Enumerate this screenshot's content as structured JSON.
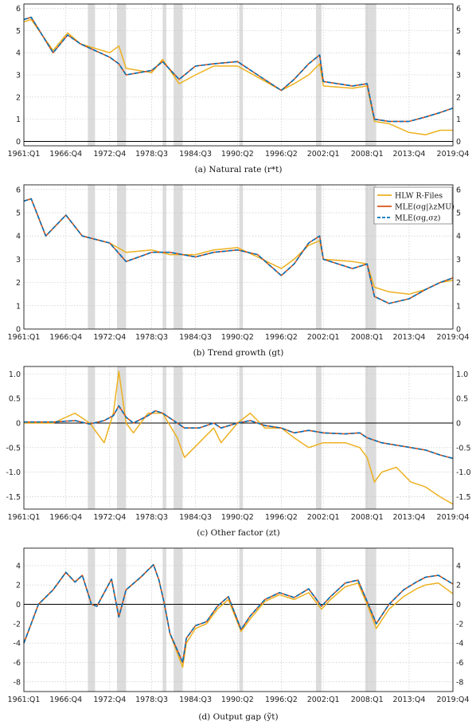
{
  "colors": {
    "hlw": "#EDB120",
    "mle_lambda": "#D95319",
    "mle_sigma": "#0072BD",
    "recession": "#dcdcdc",
    "grid": "#bfbfbf"
  },
  "x_ticks": [
    "1961:Q1",
    "1966:Q4",
    "1972:Q4",
    "1978:Q3",
    "1984:Q3",
    "1990:Q2",
    "1996:Q2",
    "2002:Q1",
    "2008:Q1",
    "2013:Q4",
    "2019:Q4"
  ],
  "recessions": [
    [
      "1969:Q4",
      "1970:Q4"
    ],
    [
      "1973:Q4",
      "1975:Q1"
    ],
    [
      "1980:Q1",
      "1980:Q3"
    ],
    [
      "1981:Q3",
      "1982:Q4"
    ],
    [
      "1990:Q3",
      "1991:Q1"
    ],
    [
      "2001:Q1",
      "2001:Q4"
    ],
    [
      "2007:Q4",
      "2009:Q2"
    ]
  ],
  "legend": [
    {
      "label": "HLW R-Files",
      "color": "#EDB120",
      "dash": "solid"
    },
    {
      "label": "MLE(σg|λzMU)",
      "color": "#D95319",
      "dash": "solid"
    },
    {
      "label": "MLE(σg,σz)",
      "color": "#0072BD",
      "dash": "dashed"
    }
  ],
  "chart_data": [
    {
      "type": "line",
      "caption": "(a) Natural rate (r*t)",
      "ylim": [
        -0.2,
        6.2
      ],
      "yticks": [
        0,
        1,
        2,
        3,
        4,
        5,
        6
      ],
      "x": [
        "1961:Q1",
        "1962:Q1",
        "1965:Q1",
        "1967:Q1",
        "1968:Q4",
        "1972:Q4",
        "1974:Q1",
        "1975:Q1",
        "1978:Q3",
        "1980:Q1",
        "1982:Q2",
        "1984:Q3",
        "1987:Q1",
        "1990:Q2",
        "1993:Q1",
        "1996:Q2",
        "1998:Q1",
        "2000:Q1",
        "2001:Q3",
        "2002:Q1",
        "2006:Q1",
        "2008:Q1",
        "2009:Q1",
        "2011:Q1",
        "2013:Q4",
        "2016:Q1",
        "2018:Q1",
        "2019:Q4"
      ],
      "series": [
        {
          "name": "HLW R-Files",
          "values": [
            5.4,
            5.5,
            4.1,
            4.9,
            4.4,
            4.0,
            4.3,
            3.3,
            3.1,
            3.7,
            2.6,
            3.0,
            3.4,
            3.4,
            2.9,
            2.3,
            2.6,
            3.0,
            3.5,
            2.5,
            2.4,
            2.5,
            0.9,
            0.8,
            0.4,
            0.3,
            0.5,
            0.5
          ]
        },
        {
          "name": "MLE(σg|λzMU)",
          "values": [
            5.5,
            5.6,
            4.0,
            4.8,
            4.4,
            3.8,
            3.5,
            3.0,
            3.2,
            3.6,
            2.8,
            3.4,
            3.5,
            3.6,
            3.0,
            2.3,
            2.8,
            3.5,
            3.9,
            2.7,
            2.5,
            2.6,
            1.0,
            0.9,
            0.9,
            1.1,
            1.3,
            1.5
          ]
        },
        {
          "name": "MLE(σg,σz)",
          "values": [
            5.5,
            5.6,
            4.0,
            4.8,
            4.4,
            3.8,
            3.5,
            3.0,
            3.2,
            3.6,
            2.8,
            3.4,
            3.5,
            3.6,
            3.0,
            2.3,
            2.8,
            3.5,
            3.9,
            2.7,
            2.5,
            2.6,
            1.0,
            0.9,
            0.9,
            1.1,
            1.3,
            1.5
          ]
        }
      ]
    },
    {
      "type": "line",
      "caption": "(b) Trend growth (gt)",
      "ylim": [
        0,
        6.2
      ],
      "yticks": [
        0,
        1,
        2,
        3,
        4,
        5,
        6
      ],
      "x": [
        "1961:Q1",
        "1962:Q1",
        "1964:Q1",
        "1966:Q4",
        "1969:Q1",
        "1972:Q4",
        "1975:Q1",
        "1978:Q3",
        "1981:Q1",
        "1984:Q3",
        "1987:Q1",
        "1990:Q2",
        "1993:Q1",
        "1996:Q2",
        "1998:Q1",
        "2000:Q1",
        "2001:Q3",
        "2002:Q1",
        "2006:Q1",
        "2008:Q1",
        "2009:Q1",
        "2011:Q1",
        "2013:Q4",
        "2016:Q1",
        "2018:Q1",
        "2019:Q4"
      ],
      "series": [
        {
          "name": "HLW R-Files",
          "values": [
            5.5,
            5.6,
            4.0,
            4.9,
            4.0,
            3.7,
            3.3,
            3.4,
            3.2,
            3.2,
            3.4,
            3.5,
            3.1,
            2.6,
            3.0,
            3.6,
            3.8,
            3.0,
            2.9,
            2.8,
            1.8,
            1.6,
            1.5,
            1.7,
            2.0,
            2.1
          ]
        },
        {
          "name": "MLE(σg|λzMU)",
          "values": [
            5.5,
            5.6,
            4.0,
            4.9,
            4.0,
            3.7,
            2.9,
            3.3,
            3.3,
            3.1,
            3.3,
            3.4,
            3.2,
            2.3,
            2.8,
            3.7,
            4.0,
            3.0,
            2.6,
            2.8,
            1.4,
            1.1,
            1.3,
            1.7,
            2.0,
            2.2
          ]
        },
        {
          "name": "MLE(σg,σz)",
          "values": [
            5.5,
            5.6,
            4.0,
            4.9,
            4.0,
            3.7,
            2.9,
            3.3,
            3.3,
            3.1,
            3.3,
            3.4,
            3.2,
            2.3,
            2.8,
            3.7,
            4.0,
            3.0,
            2.6,
            2.8,
            1.4,
            1.1,
            1.3,
            1.7,
            2.0,
            2.2
          ]
        }
      ]
    },
    {
      "type": "line",
      "caption": "(c) Other factor (zt)",
      "ylim": [
        -1.75,
        1.15
      ],
      "yticks": [
        1.0,
        0.5,
        0,
        -0.5,
        -1.0,
        -1.5
      ],
      "x": [
        "1961:Q1",
        "1965:Q1",
        "1968:Q1",
        "1970:Q1",
        "1972:Q1",
        "1973:Q2",
        "1974:Q1",
        "1975:Q1",
        "1976:Q1",
        "1978:Q1",
        "1979:Q1",
        "1980:Q1",
        "1982:Q1",
        "1983:Q1",
        "1985:Q1",
        "1987:Q1",
        "1988:Q1",
        "1990:Q2",
        "1992:Q1",
        "1994:Q1",
        "1996:Q2",
        "1998:Q1",
        "2000:Q1",
        "2002:Q1",
        "2005:Q1",
        "2007:Q1",
        "2008:Q1",
        "2009:Q1",
        "2010:Q1",
        "2012:Q1",
        "2014:Q1",
        "2016:Q1",
        "2018:Q1",
        "2019:Q4"
      ],
      "series": [
        {
          "name": "HLW R-Files",
          "values": [
            0.0,
            0.0,
            0.2,
            0.0,
            -0.4,
            0.2,
            1.05,
            0.0,
            -0.2,
            0.2,
            0.2,
            0.2,
            -0.3,
            -0.7,
            -0.4,
            -0.1,
            -0.4,
            0.0,
            0.2,
            -0.1,
            -0.1,
            -0.3,
            -0.5,
            -0.4,
            -0.4,
            -0.5,
            -0.7,
            -1.2,
            -1.0,
            -0.9,
            -1.2,
            -1.3,
            -1.5,
            -1.65
          ]
        },
        {
          "name": "MLE(σg|λzMU)",
          "values": [
            0.02,
            0.02,
            0.05,
            -0.02,
            0.05,
            0.15,
            0.35,
            0.12,
            0.0,
            0.15,
            0.25,
            0.2,
            0.0,
            -0.1,
            -0.1,
            0.0,
            -0.1,
            0.0,
            0.05,
            -0.05,
            -0.1,
            -0.2,
            -0.15,
            -0.2,
            -0.22,
            -0.2,
            -0.3,
            -0.35,
            -0.4,
            -0.45,
            -0.5,
            -0.55,
            -0.65,
            -0.72
          ]
        },
        {
          "name": "MLE(σg,σz)",
          "values": [
            0.02,
            0.02,
            0.05,
            -0.02,
            0.05,
            0.15,
            0.35,
            0.12,
            0.0,
            0.15,
            0.25,
            0.2,
            0.0,
            -0.1,
            -0.1,
            0.0,
            -0.1,
            0.0,
            0.05,
            -0.05,
            -0.1,
            -0.2,
            -0.15,
            -0.2,
            -0.22,
            -0.2,
            -0.3,
            -0.35,
            -0.4,
            -0.45,
            -0.5,
            -0.55,
            -0.65,
            -0.72
          ]
        }
      ]
    },
    {
      "type": "line",
      "caption": "(d) Output gap (ỹt)",
      "ylim": [
        -9,
        5.8
      ],
      "yticks": [
        4,
        2,
        0,
        -2,
        -4,
        -6,
        -8
      ],
      "x": [
        "1961:Q1",
        "1962:Q1",
        "1963:Q1",
        "1965:Q1",
        "1966:Q4",
        "1968:Q1",
        "1969:Q1",
        "1970:Q2",
        "1971:Q1",
        "1973:Q1",
        "1974:Q1",
        "1975:Q1",
        "1977:Q1",
        "1978:Q4",
        "1979:Q3",
        "1980:Q2",
        "1981:Q1",
        "1982:Q4",
        "1983:Q2",
        "1984:Q3",
        "1986:Q1",
        "1987:Q3",
        "1989:Q1",
        "1990:Q4",
        "1992:Q1",
        "1994:Q1",
        "1996:Q1",
        "1998:Q1",
        "2000:Q1",
        "2001:Q4",
        "2003:Q1",
        "2005:Q1",
        "2006:Q4",
        "2008:Q1",
        "2009:Q2",
        "2011:Q1",
        "2013:Q1",
        "2014:Q4",
        "2016:Q1",
        "2017:Q4",
        "2019:Q4"
      ],
      "series": [
        {
          "name": "HLW R-Files",
          "values": [
            -4.0,
            -2.0,
            0.0,
            1.5,
            3.3,
            2.3,
            3.0,
            0.0,
            -0.2,
            2.6,
            -1.3,
            1.5,
            2.8,
            4.1,
            2.5,
            0.0,
            -3.0,
            -6.5,
            -4.0,
            -2.5,
            -2.0,
            -0.5,
            0.5,
            -2.8,
            -1.5,
            0.3,
            1.0,
            0.5,
            1.2,
            -0.5,
            0.5,
            1.8,
            2.2,
            0.0,
            -2.5,
            -0.5,
            0.8,
            1.6,
            2.0,
            2.2,
            1.1
          ]
        },
        {
          "name": "MLE(σg|λzMU)",
          "values": [
            -4.0,
            -2.0,
            0.0,
            1.5,
            3.3,
            2.3,
            3.0,
            0.0,
            -0.2,
            2.6,
            -1.3,
            1.5,
            2.8,
            4.1,
            2.5,
            0.0,
            -3.0,
            -6.0,
            -3.5,
            -2.2,
            -1.8,
            -0.2,
            0.8,
            -2.6,
            -1.2,
            0.5,
            1.2,
            0.7,
            1.6,
            -0.2,
            0.8,
            2.2,
            2.5,
            0.3,
            -2.0,
            0.0,
            1.5,
            2.3,
            2.8,
            3.0,
            2.1
          ]
        },
        {
          "name": "MLE(σg,σz)",
          "values": [
            -4.0,
            -2.0,
            0.0,
            1.5,
            3.3,
            2.3,
            3.0,
            0.0,
            -0.2,
            2.6,
            -1.3,
            1.5,
            2.8,
            4.1,
            2.5,
            0.0,
            -3.0,
            -6.0,
            -3.5,
            -2.2,
            -1.8,
            -0.2,
            0.8,
            -2.6,
            -1.2,
            0.5,
            1.2,
            0.7,
            1.6,
            -0.2,
            0.8,
            2.2,
            2.5,
            0.3,
            -2.0,
            0.0,
            1.5,
            2.3,
            2.8,
            3.0,
            2.1
          ]
        }
      ]
    }
  ]
}
